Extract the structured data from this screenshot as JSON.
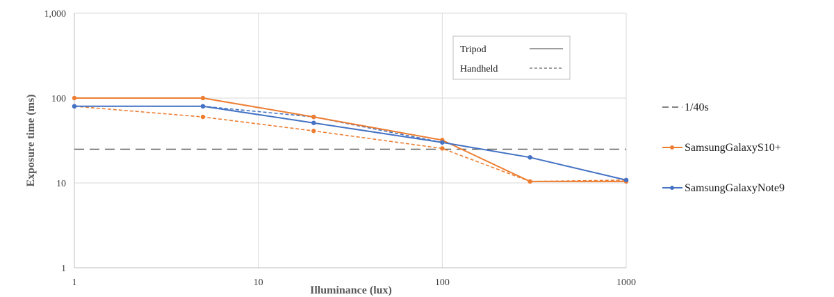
{
  "chart_data": {
    "type": "line",
    "xlabel": "Illuminance (lux)",
    "ylabel": "Exposure time (ms)",
    "x_scale": "log",
    "y_scale": "log",
    "xlim": [
      1,
      1000
    ],
    "ylim": [
      1,
      1000
    ],
    "grid": true,
    "x_ticks": [
      "1",
      "10",
      "100",
      "1000"
    ],
    "y_ticks": [
      "1",
      "10",
      "100",
      "1,000"
    ],
    "x_tick_values": [
      1,
      10,
      100,
      1000
    ],
    "y_tick_values": [
      1,
      10,
      100,
      1000
    ],
    "reference_line": {
      "name": "1/40s",
      "value": 25,
      "color": "#595959"
    },
    "line_style_legend": [
      {
        "label": "Tripod",
        "style": "solid"
      },
      {
        "label": "Handheld",
        "style": "dashed"
      }
    ],
    "legend_position": "right",
    "series": [
      {
        "name": "SamsungGalaxyS10+",
        "mode": "Tripod",
        "style": "solid",
        "color": "#ED7D31",
        "x": [
          1,
          5,
          20,
          100,
          300,
          1000
        ],
        "y": [
          100,
          100,
          60,
          32,
          10.4,
          10.4
        ]
      },
      {
        "name": "SamsungGalaxyS10+",
        "mode": "Handheld",
        "style": "dashed",
        "color": "#ED7D31",
        "x": [
          1,
          5,
          20,
          100,
          300,
          1000
        ],
        "y": [
          80,
          60,
          41,
          25.5,
          10.4,
          10.8
        ]
      },
      {
        "name": "SamsungGalaxyNote9",
        "mode": "Tripod",
        "style": "solid",
        "color": "#4472C4",
        "x": [
          1,
          5,
          20,
          100,
          300,
          1000
        ],
        "y": [
          80,
          80,
          51,
          30,
          20,
          10.8
        ]
      },
      {
        "name": "SamsungGalaxyNote9",
        "mode": "Handheld",
        "style": "dashed",
        "color": "#4472C4",
        "x": [
          1,
          5,
          20,
          100,
          300,
          1000
        ],
        "y": [
          80,
          80,
          60,
          30,
          20,
          10.8
        ]
      }
    ],
    "legend": [
      {
        "label": "1/40s",
        "style": "long-dash",
        "color": "#595959"
      },
      {
        "label": "SamsungGalaxyS10+",
        "style": "line-marker",
        "color": "#ED7D31"
      },
      {
        "label": "SamsungGalaxyNote9",
        "style": "line-marker",
        "color": "#4472C4"
      }
    ]
  }
}
